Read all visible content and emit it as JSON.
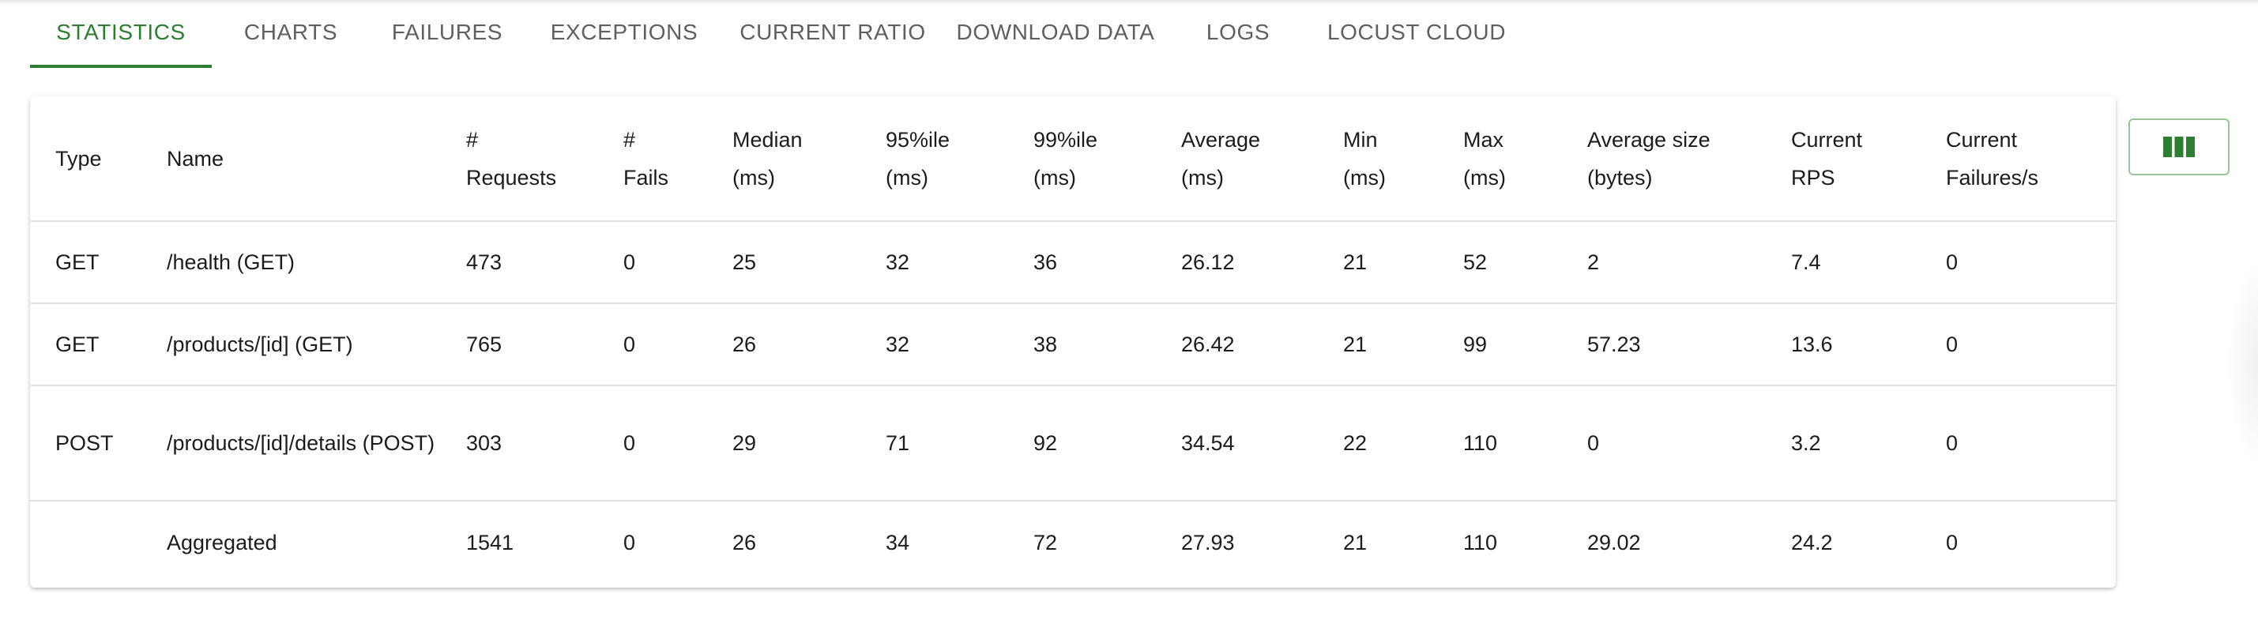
{
  "tabs": [
    {
      "label": "STATISTICS",
      "active": true
    },
    {
      "label": "CHARTS"
    },
    {
      "label": "FAILURES"
    },
    {
      "label": "EXCEPTIONS"
    },
    {
      "label": "CURRENT RATIO"
    },
    {
      "label": "DOWNLOAD DATA"
    },
    {
      "label": "LOGS"
    },
    {
      "label": "LOCUST CLOUD"
    }
  ],
  "table": {
    "headers": [
      "Type",
      "Name",
      "# Requests",
      "# Fails",
      "Median (ms)",
      "95%ile (ms)",
      "99%ile (ms)",
      "Average (ms)",
      "Min (ms)",
      "Max (ms)",
      "Average size (bytes)",
      "Current RPS",
      "Current Failures/s"
    ],
    "rows": [
      [
        "GET",
        "/health (GET)",
        "473",
        "0",
        "25",
        "32",
        "36",
        "26.12",
        "21",
        "52",
        "2",
        "7.4",
        "0"
      ],
      [
        "GET",
        "/products/[id] (GET)",
        "765",
        "0",
        "26",
        "32",
        "38",
        "26.42",
        "21",
        "99",
        "57.23",
        "13.6",
        "0"
      ],
      [
        "POST",
        "/products/[id]/details (POST)",
        "303",
        "0",
        "29",
        "71",
        "92",
        "34.54",
        "22",
        "110",
        "0",
        "3.2",
        "0"
      ],
      [
        "",
        "Aggregated",
        "1541",
        "0",
        "26",
        "34",
        "72",
        "27.93",
        "21",
        "110",
        "29.02",
        "24.2",
        "0"
      ]
    ]
  },
  "column_selector": {
    "icon": "view-column-icon",
    "color": "#2e7d32"
  },
  "colors": {
    "accent": "#2e7d32",
    "tab_text": "#5f5f5f",
    "divider": "#e0e0e0"
  }
}
